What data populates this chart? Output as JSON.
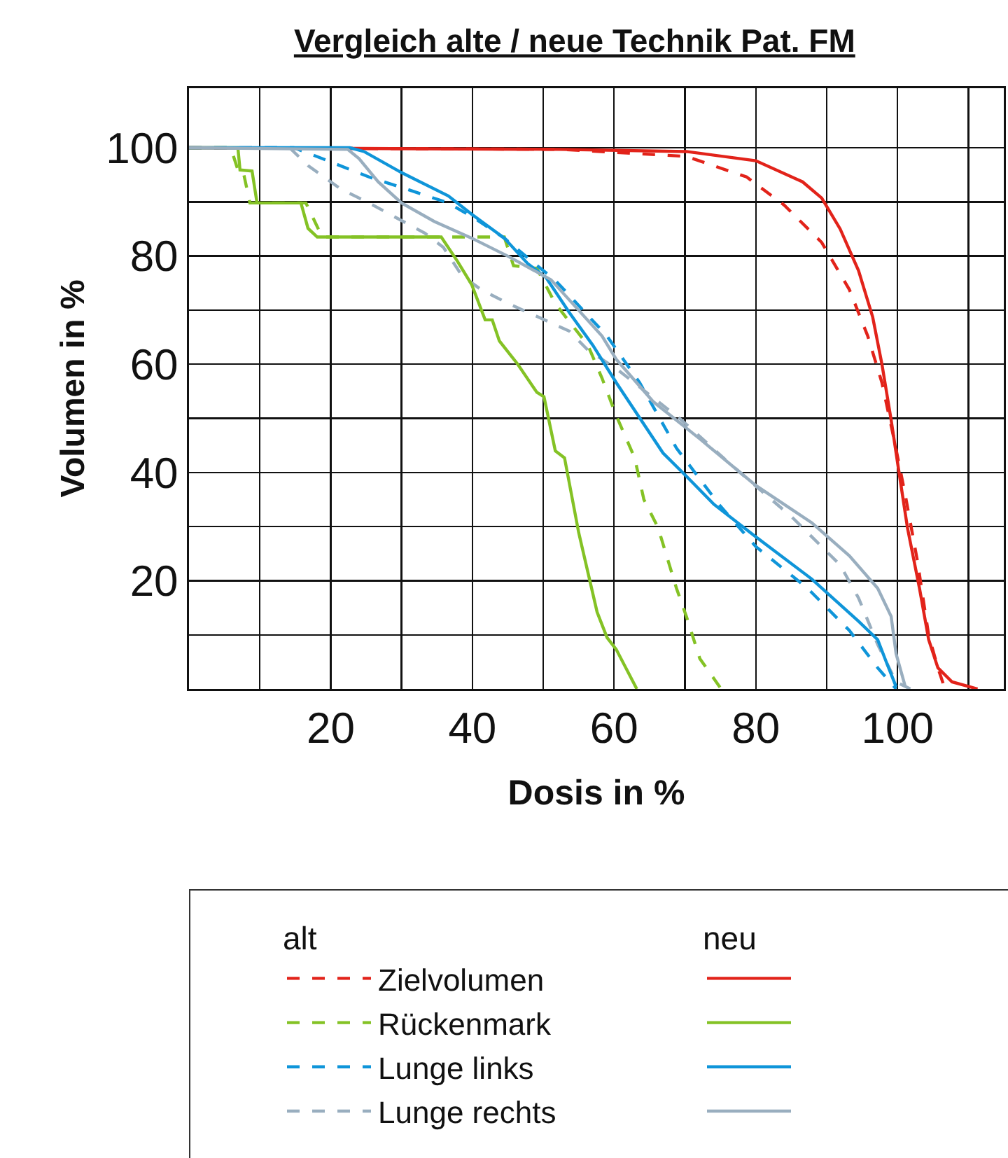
{
  "chart_data": {
    "type": "line",
    "title": "Vergleich alte / neue Technik Pat. FM",
    "xlabel": "Dosis in %",
    "ylabel": "Volumen in %",
    "xlim": [
      0,
      115
    ],
    "xticks": [
      {
        "value": 10,
        "label": null
      },
      20,
      {
        "value": 30,
        "label": null
      },
      40,
      {
        "value": 50,
        "label": null
      },
      60,
      {
        "value": 70,
        "label": null
      },
      80,
      {
        "value": 90,
        "label": null
      },
      100,
      {
        "value": 110,
        "label": null
      }
    ],
    "ylim": [
      0,
      111
    ],
    "yticks": [
      {
        "value": 0,
        "label": null
      },
      {
        "value": 10,
        "label": null
      },
      20,
      {
        "value": 30,
        "label": null
      },
      40,
      {
        "value": 50,
        "label": null
      },
      60,
      {
        "value": 70,
        "label": null
      },
      80,
      {
        "value": 90,
        "label": null
      },
      100
    ],
    "grid": true,
    "legend": "bottom",
    "annotations": [
      "alt",
      "neu"
    ],
    "series": [
      {
        "name": "Zielvolumen",
        "color": "#e2231a",
        "line_style": "dashed",
        "x": [
          0,
          52.4,
          70.2,
          78.7,
          84,
          89.3,
          93.2,
          95.8,
          97.8,
          99.5,
          101.1,
          102.8,
          104.4,
          105.7,
          106.7
        ],
        "values": [
          100,
          99.7,
          98.4,
          94.6,
          89.4,
          82.5,
          73.8,
          65.2,
          56.6,
          46.2,
          35.8,
          23.7,
          9.9,
          3.9,
          0
        ]
      },
      {
        "name": "Rückenmark",
        "color": "#84c225",
        "line_style": "dashed",
        "x": [
          0,
          5.9,
          6.9,
          7.6,
          8.6,
          16.5,
          18.8,
          44.5,
          45.8,
          49.1,
          51.7,
          56.3,
          58.3,
          60.3,
          62.9,
          64.2,
          66.2,
          68.8,
          70.2,
          72.1,
          75.1
        ],
        "values": [
          100,
          100,
          95.9,
          95.9,
          89.8,
          89.8,
          83.5,
          83.5,
          78.2,
          77.7,
          71.2,
          63.5,
          57.4,
          50.5,
          42.7,
          35,
          29.8,
          18.6,
          13.4,
          5.6,
          0
        ]
      },
      {
        "name": "Lunge links",
        "color": "#0f95d9",
        "line_style": "dashed",
        "x": [
          0,
          14.8,
          18.8,
          25.4,
          30.6,
          36.6,
          40.5,
          44.5,
          48.4,
          51.7,
          59,
          63.6,
          68.8,
          74.8,
          80,
          87.3,
          93.2,
          97.2,
          99.8
        ],
        "values": [
          100,
          100,
          98,
          94.6,
          92.4,
          89.8,
          86.8,
          83.3,
          79,
          75.5,
          65.2,
          56.6,
          44.5,
          34.1,
          26.3,
          18.6,
          10.8,
          3.9,
          0
        ]
      },
      {
        "name": "Lunge rechts",
        "color": "#99aebf",
        "line_style": "dashed",
        "x": [
          0,
          14.2,
          16.8,
          21.4,
          25.4,
          33.3,
          35.9,
          38.5,
          41.2,
          45.1,
          53.7,
          56.3,
          60.3,
          69.5,
          76.1,
          85.3,
          91.9,
          94.5,
          97.2,
          99.8,
          101.8
        ],
        "values": [
          100,
          100,
          96.7,
          92.4,
          89.8,
          84.2,
          81.6,
          76.4,
          73.8,
          71.2,
          66.1,
          62.6,
          59.2,
          49.7,
          41.9,
          31.5,
          22.9,
          16.8,
          8.2,
          1.3,
          0
        ]
      },
      {
        "color": "#e2231a",
        "line_style": "solid",
        "x": [
          0,
          52.4,
          70.2,
          80,
          86.6,
          89.3,
          91.9,
          94.5,
          96.5,
          97.8,
          99.1,
          100.1,
          101.4,
          103.1,
          104.4,
          105.7,
          107.7,
          111.3
        ],
        "values": [
          100,
          99.7,
          99.3,
          97.6,
          93.7,
          90.7,
          85,
          77.3,
          68.7,
          60,
          49.7,
          41,
          29.8,
          18.6,
          9.1,
          3.9,
          1.3,
          0
        ]
      },
      {
        "color": "#84c225",
        "line_style": "solid",
        "x": [
          0,
          6.9,
          7.2,
          8.9,
          9.6,
          15.8,
          16.8,
          18.1,
          35.6,
          37.9,
          39.9,
          41.8,
          42.8,
          43.8,
          46.4,
          49.1,
          50.1,
          51.7,
          53,
          55,
          57.6,
          59,
          60.3,
          63.2
        ],
        "values": [
          100,
          100,
          95.9,
          95.7,
          89.8,
          89.8,
          85.1,
          83.5,
          83.5,
          79,
          74.7,
          68.2,
          68.2,
          64.3,
          60,
          54.8,
          54,
          44,
          42.7,
          28.9,
          14.2,
          9.5,
          7.3,
          0
        ]
      },
      {
        "color": "#0f95d9",
        "line_style": "solid",
        "x": [
          0,
          22.7,
          24.7,
          30,
          36.6,
          39.9,
          44.5,
          47.8,
          50.4,
          53.7,
          57,
          60.3,
          66.9,
          70.2,
          74.1,
          80,
          87.9,
          94.5,
          97.2,
          98.5,
          99.8
        ],
        "values": [
          100,
          100,
          99.3,
          95.4,
          91.1,
          87.7,
          83.3,
          78.6,
          76,
          69.5,
          63.5,
          56.6,
          43.6,
          39.3,
          34.1,
          28.1,
          20.3,
          12.5,
          9.1,
          4.7,
          0.4
        ]
      },
      {
        "color": "#99aebf",
        "line_style": "solid",
        "x": [
          0,
          22.4,
          24,
          26.7,
          30,
          34.6,
          39.9,
          45.1,
          51.1,
          58.3,
          60.3,
          65.5,
          72.1,
          80,
          87.9,
          93.2,
          97.2,
          99.1,
          99.8,
          101.1
        ],
        "values": [
          100,
          99.7,
          98,
          93.7,
          89.8,
          86.4,
          83.3,
          79.9,
          75.6,
          65.2,
          60.9,
          53.1,
          46.2,
          37.6,
          30.7,
          24.6,
          18.6,
          13.4,
          6.5,
          0.4
        ]
      }
    ]
  }
}
